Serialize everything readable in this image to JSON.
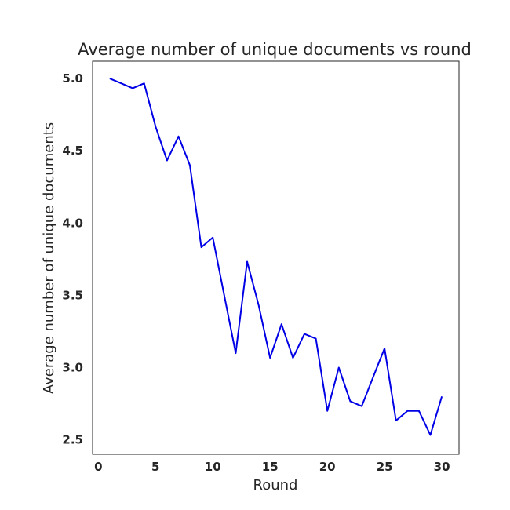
{
  "chart_data": {
    "type": "line",
    "title": "Average number of unique documents vs round",
    "xlabel": "Round",
    "ylabel": "Average number of unique documents",
    "xlim": [
      -0.5,
      31.5
    ],
    "ylim": [
      2.4,
      5.12
    ],
    "xticks": [
      0,
      5,
      10,
      15,
      20,
      25,
      30
    ],
    "yticks": [
      2.5,
      3.0,
      3.5,
      4.0,
      4.5,
      5.0
    ],
    "xtick_labels": [
      "0",
      "5",
      "10",
      "15",
      "20",
      "25",
      "30"
    ],
    "ytick_labels": [
      "2.5",
      "3.0",
      "3.5",
      "4.0",
      "4.5",
      "5.0"
    ],
    "grid": false,
    "legend": false,
    "line_color": "#0000e6",
    "series": [
      {
        "x": [
          1,
          2,
          3,
          4,
          5,
          6,
          7,
          8,
          9,
          10,
          11,
          12,
          13,
          14,
          15,
          16,
          17,
          18,
          19,
          20,
          21,
          22,
          23,
          24,
          25,
          26,
          27,
          28,
          29,
          30
        ],
        "values": [
          5.0,
          4.967,
          4.933,
          4.967,
          4.667,
          4.433,
          4.6,
          4.4,
          3.833,
          3.9,
          3.5,
          3.1,
          3.733,
          3.433,
          3.067,
          3.3,
          3.067,
          3.233,
          3.2,
          2.7,
          3.0,
          2.767,
          2.733,
          2.933,
          3.133,
          2.633,
          2.7,
          2.7,
          2.533,
          2.8
        ]
      }
    ]
  }
}
